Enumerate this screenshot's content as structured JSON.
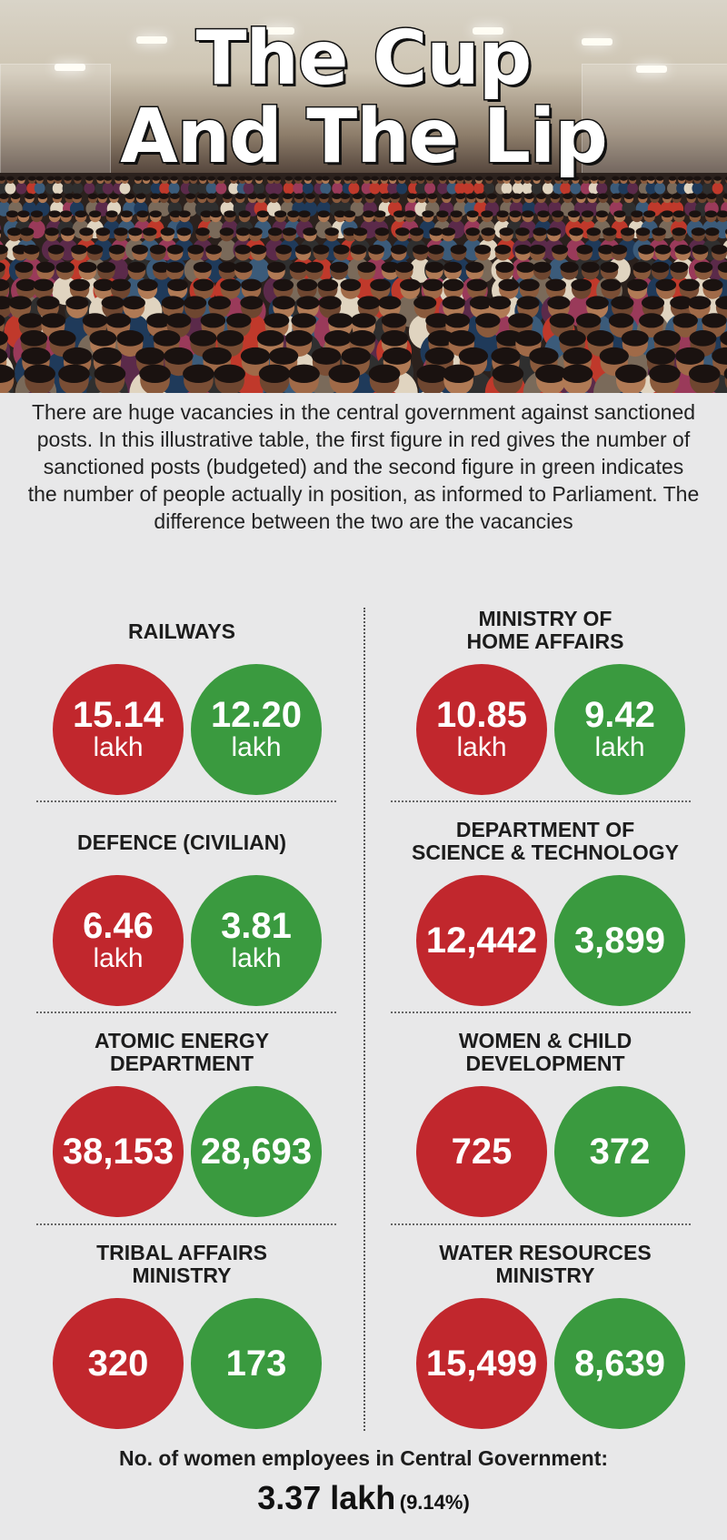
{
  "header": {
    "title_line1": "The Cup",
    "title_line2": "And The Lip"
  },
  "intro": "There are huge vacancies in the central government against sanctioned posts. In this illustrative table, the first figure in red gives the number of sanctioned posts (budgeted) and the second figure in green indicates the number of people actually in position, as informed to Parliament. The difference between the two are the vacancies",
  "colors": {
    "sanctioned": "#c1272d",
    "in_position": "#3a9a3f",
    "background": "#e8e8e9"
  },
  "departments": [
    {
      "name_line1": "RAILWAYS",
      "name_line2": "",
      "sanctioned": "15.14",
      "sanctioned_unit": "lakh",
      "in_position": "12.20",
      "in_position_unit": "lakh"
    },
    {
      "name_line1": "MINISTRY OF",
      "name_line2": "HOME AFFAIRS",
      "sanctioned": "10.85",
      "sanctioned_unit": "lakh",
      "in_position": "9.42",
      "in_position_unit": "lakh"
    },
    {
      "name_line1": "DEFENCE (CIVILIAN)",
      "name_line2": "",
      "sanctioned": "6.46",
      "sanctioned_unit": "lakh",
      "in_position": "3.81",
      "in_position_unit": "lakh"
    },
    {
      "name_line1": "DEPARTMENT OF",
      "name_line2": "SCIENCE & TECHNOLOGY",
      "sanctioned": "12,442",
      "sanctioned_unit": "",
      "in_position": "3,899",
      "in_position_unit": ""
    },
    {
      "name_line1": "ATOMIC ENERGY",
      "name_line2": "DEPARTMENT",
      "sanctioned": "38,153",
      "sanctioned_unit": "",
      "in_position": "28,693",
      "in_position_unit": ""
    },
    {
      "name_line1": "WOMEN & CHILD",
      "name_line2": "DEVELOPMENT",
      "sanctioned": "725",
      "sanctioned_unit": "",
      "in_position": "372",
      "in_position_unit": ""
    },
    {
      "name_line1": "TRIBAL AFFAIRS",
      "name_line2": "MINISTRY",
      "sanctioned": "320",
      "sanctioned_unit": "",
      "in_position": "173",
      "in_position_unit": ""
    },
    {
      "name_line1": "WATER RESOURCES",
      "name_line2": "MINISTRY",
      "sanctioned": "15,499",
      "sanctioned_unit": "",
      "in_position": "8,639",
      "in_position_unit": ""
    }
  ],
  "footer": {
    "label": "No. of women employees in Central Government:",
    "total": "3.37 lakh",
    "percent": "(9.14%)"
  }
}
